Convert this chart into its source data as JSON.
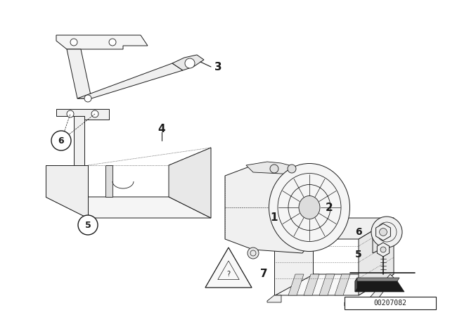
{
  "bg_color": "#ffffff",
  "line_color": "#1a1a1a",
  "watermark": "00207082",
  "figsize": [
    6.4,
    4.48
  ],
  "dpi": 100
}
